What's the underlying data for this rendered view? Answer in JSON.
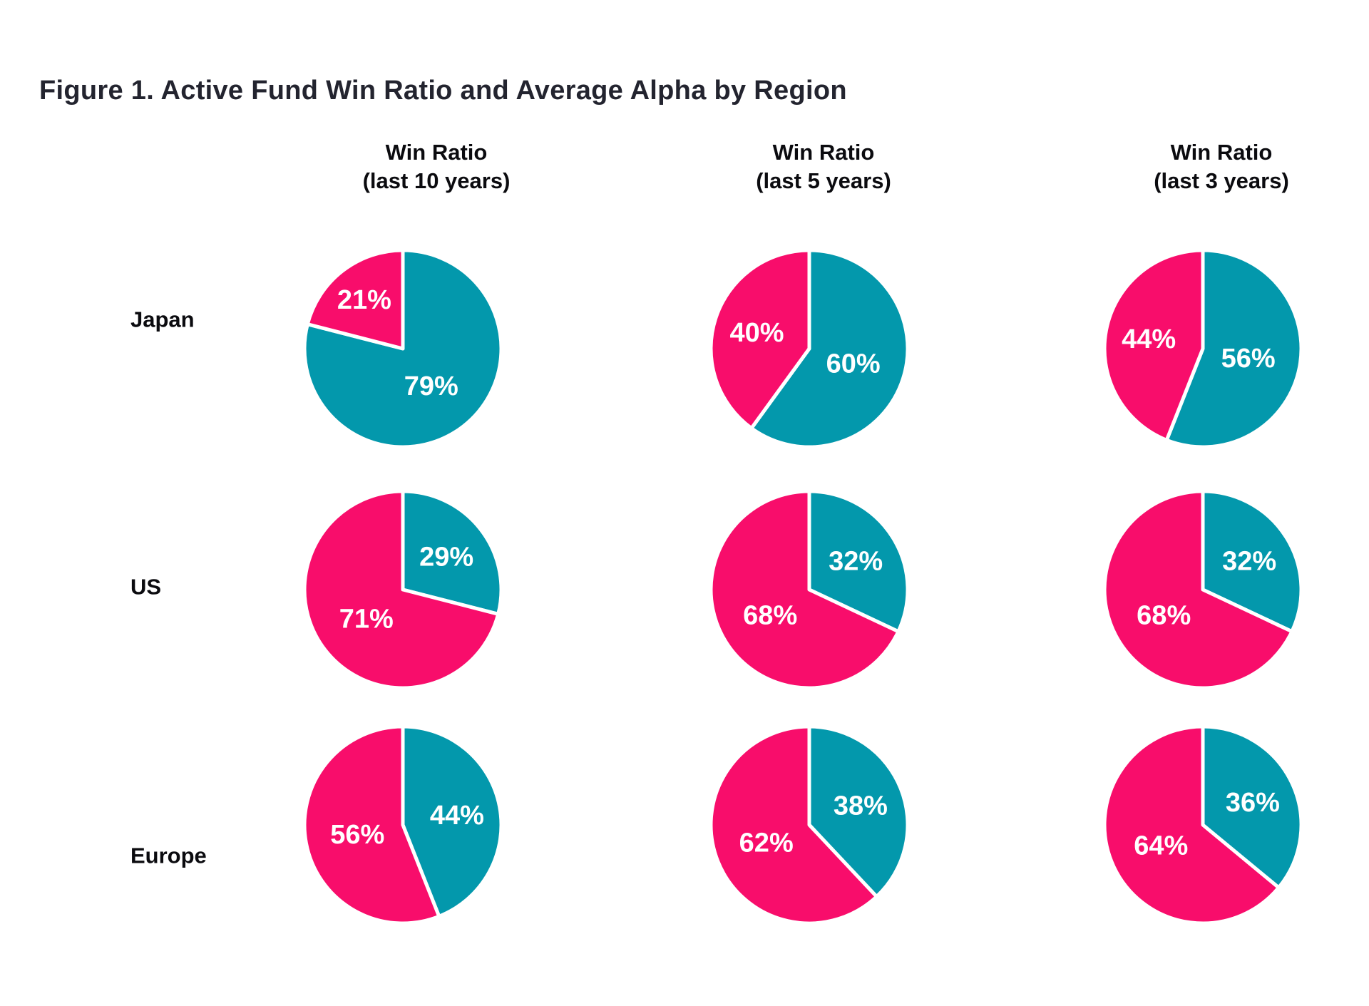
{
  "title": "Figure 1. Active Fund Win Ratio and Average Alpha by Region",
  "columns": [
    {
      "label": "Win Ratio",
      "sublabel": "(last 10 years)"
    },
    {
      "label": "Win Ratio",
      "sublabel": "(last 5 years)"
    },
    {
      "label": "Win Ratio",
      "sublabel": "(last 3 years)"
    }
  ],
  "rows": [
    {
      "label": "Japan"
    },
    {
      "label": "US"
    },
    {
      "label": "Europe"
    }
  ],
  "colors": {
    "pink": "#F80D6B",
    "teal": "#0398AC",
    "title_text": "#23242F",
    "label_text": "#0B0B0F",
    "pct_text": "#FFFFFF",
    "background": "#FFFFFF",
    "slice_divider": "#FFFFFF"
  },
  "chart_data": {
    "type": "pie",
    "title": "Figure 1. Active Fund Win Ratio and Average Alpha by Region",
    "row_labels": [
      "Japan",
      "US",
      "Europe"
    ],
    "column_labels": [
      "Win Ratio (last 10 years)",
      "Win Ratio (last 5 years)",
      "Win Ratio (last 3 years)"
    ],
    "series_names": [
      "pink",
      "teal"
    ],
    "value_format": "percent",
    "legend": "none",
    "layout_hint": "3x3 grid of two-slice pies; teal slice starts at 12 o'clock sweeping clockwise, pink fills remainder; white divider between slices; labels printed inside slices",
    "pies": [
      {
        "row": "Japan",
        "column": "Win Ratio (last 10 years)",
        "pink_pct": 21,
        "teal_pct": 79
      },
      {
        "row": "Japan",
        "column": "Win Ratio (last 5 years)",
        "pink_pct": 40,
        "teal_pct": 60
      },
      {
        "row": "Japan",
        "column": "Win Ratio (last 3 years)",
        "pink_pct": 44,
        "teal_pct": 56
      },
      {
        "row": "US",
        "column": "Win Ratio (last 10 years)",
        "pink_pct": 71,
        "teal_pct": 29
      },
      {
        "row": "US",
        "column": "Win Ratio (last 5 years)",
        "pink_pct": 68,
        "teal_pct": 32
      },
      {
        "row": "US",
        "column": "Win Ratio (last 3 years)",
        "pink_pct": 68,
        "teal_pct": 32
      },
      {
        "row": "Europe",
        "column": "Win Ratio (last 10 years)",
        "pink_pct": 56,
        "teal_pct": 44
      },
      {
        "row": "Europe",
        "column": "Win Ratio (last 5 years)",
        "pink_pct": 62,
        "teal_pct": 38
      },
      {
        "row": "Europe",
        "column": "Win Ratio (last 3 years)",
        "pink_pct": 64,
        "teal_pct": 36
      }
    ]
  }
}
